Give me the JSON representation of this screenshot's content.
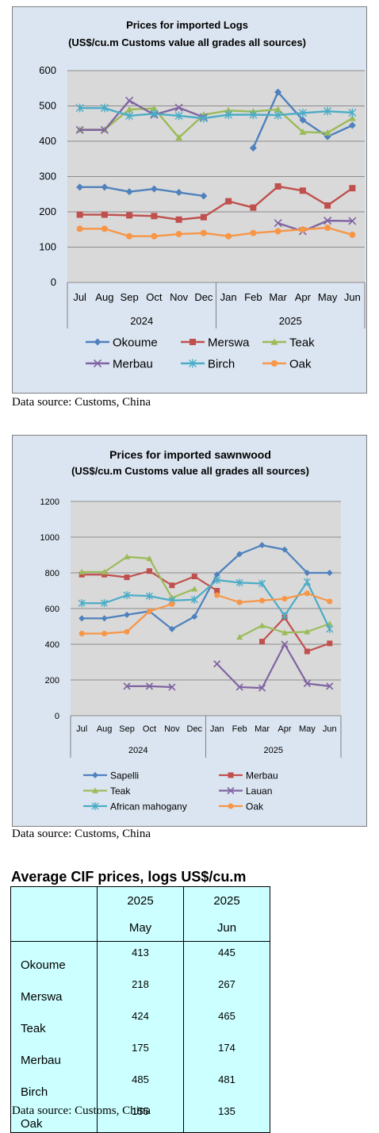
{
  "chart_data": [
    {
      "type": "line",
      "title": "Prices for imported Logs",
      "subtitle": "(US$/cu.m Customs value all grades all sources)",
      "categories": [
        "Jul",
        "Aug",
        "Sep",
        "Oct",
        "Nov",
        "Dec",
        "Jan",
        "Feb",
        "Mar",
        "Apr",
        "May",
        "Jun"
      ],
      "year_groups": [
        {
          "label": "2024",
          "count": 6
        },
        {
          "label": "2025",
          "count": 6
        }
      ],
      "ylim": [
        0,
        600
      ],
      "yticks": [
        "0",
        "100",
        "200",
        "300",
        "400",
        "500",
        "600"
      ],
      "grid": true,
      "legend_position": "bottom",
      "series": [
        {
          "name": "Okoume",
          "color": "#4f81bd",
          "marker": "diamond",
          "values": [
            270,
            270,
            257,
            265,
            255,
            245,
            null,
            381,
            539,
            460,
            413,
            445
          ]
        },
        {
          "name": "Merswa",
          "color": "#c0504d",
          "marker": "square",
          "values": [
            192,
            192,
            190,
            188,
            178,
            185,
            230,
            212,
            272,
            260,
            218,
            267
          ]
        },
        {
          "name": "Teak",
          "color": "#9bbb59",
          "marker": "triangle",
          "values": [
            433,
            433,
            490,
            493,
            410,
            475,
            487,
            484,
            490,
            426,
            424,
            465
          ]
        },
        {
          "name": "Merbau",
          "color": "#8064a2",
          "marker": "x",
          "values": [
            432,
            432,
            515,
            475,
            495,
            468,
            null,
            null,
            168,
            145,
            175,
            174
          ]
        },
        {
          "name": "Birch",
          "color": "#4bacc6",
          "marker": "star",
          "values": [
            494,
            494,
            472,
            478,
            472,
            465,
            475,
            475,
            474,
            480,
            485,
            481
          ]
        },
        {
          "name": "Oak",
          "color": "#f79646",
          "marker": "circle",
          "values": [
            152,
            152,
            131,
            131,
            137,
            140,
            131,
            140,
            145,
            150,
            155,
            135
          ]
        }
      ]
    },
    {
      "type": "line",
      "title": "Prices for imported sawnwood",
      "subtitle": "(US$/cu.m Customs value all grades all sources)",
      "categories": [
        "Jul",
        "Aug",
        "Sep",
        "Oct",
        "Nov",
        "Dec",
        "Jan",
        "Feb",
        "Mar",
        "Apr",
        "May",
        "Jun"
      ],
      "year_groups": [
        {
          "label": "2024",
          "count": 6
        },
        {
          "label": "2025",
          "count": 6
        }
      ],
      "ylim": [
        0,
        1200
      ],
      "yticks": [
        "0",
        "200",
        "400",
        "600",
        "800",
        "1000",
        "1200"
      ],
      "grid": true,
      "legend_position": "bottom",
      "series": [
        {
          "name": "Sapelli",
          "color": "#4f81bd",
          "marker": "diamond",
          "values": [
            545,
            545,
            565,
            585,
            485,
            555,
            790,
            905,
            955,
            930,
            800,
            800
          ]
        },
        {
          "name": "Merbau",
          "color": "#c0504d",
          "marker": "square",
          "values": [
            790,
            790,
            775,
            810,
            730,
            780,
            700,
            null,
            415,
            550,
            360,
            405
          ]
        },
        {
          "name": "Teak",
          "color": "#9bbb59",
          "marker": "triangle",
          "values": [
            805,
            805,
            890,
            880,
            660,
            710,
            null,
            440,
            505,
            465,
            470,
            515
          ]
        },
        {
          "name": "Lauan",
          "color": "#8064a2",
          "marker": "x",
          "values": [
            null,
            null,
            165,
            165,
            160,
            null,
            290,
            160,
            155,
            400,
            180,
            165
          ]
        },
        {
          "name": "African mahogany",
          "color": "#4bacc6",
          "marker": "star",
          "values": [
            630,
            630,
            675,
            670,
            645,
            650,
            760,
            745,
            740,
            560,
            750,
            485
          ]
        },
        {
          "name": "Oak",
          "color": "#f79646",
          "marker": "circle",
          "values": [
            460,
            460,
            470,
            585,
            625,
            null,
            675,
            635,
            645,
            655,
            685,
            640
          ]
        }
      ]
    }
  ],
  "sources": {
    "logs": "Data source: Customs, China",
    "sawnwood": "Data source: Customs, China",
    "table": "Data source: Customs, China"
  },
  "table": {
    "title": "Average CIF prices, logs US$/cu.m",
    "col1": {
      "year": "2025",
      "month": "May"
    },
    "col2": {
      "year": "2025",
      "month": "Jun"
    },
    "rows": [
      {
        "label": "Okoume",
        "may": "413",
        "jun": "445"
      },
      {
        "label": "Merswa",
        "may": "218",
        "jun": "267"
      },
      {
        "label": "Teak",
        "may": "424",
        "jun": "465"
      },
      {
        "label": "Merbau",
        "may": "175",
        "jun": "174"
      },
      {
        "label": "Birch",
        "may": "485",
        "jun": "481"
      },
      {
        "label": "Oak",
        "may": "155",
        "jun": "135"
      }
    ]
  }
}
